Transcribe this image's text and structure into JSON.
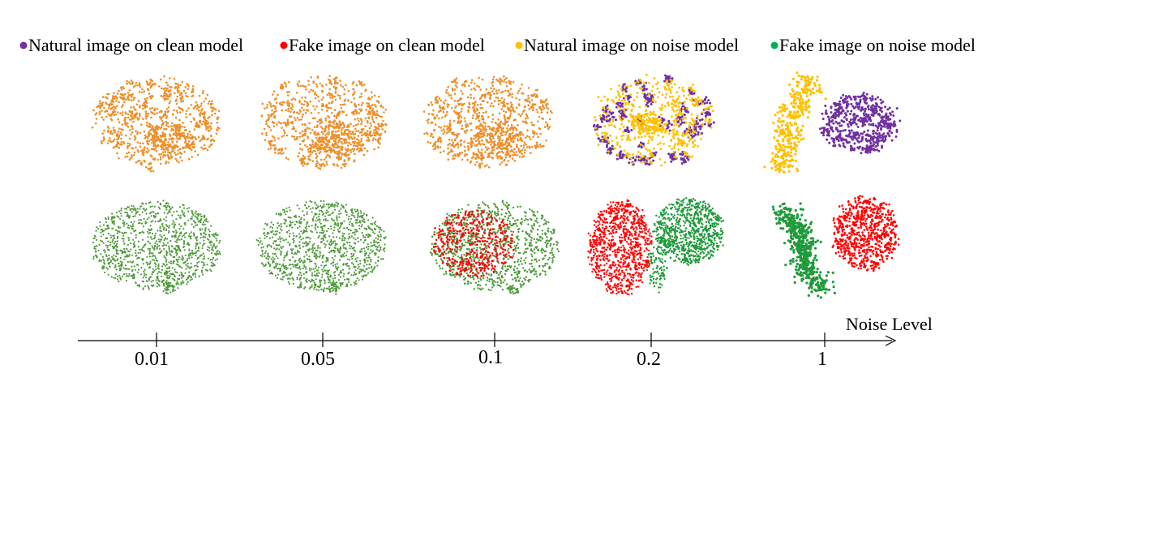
{
  "chart_data": {
    "type": "scatter",
    "title": "",
    "xlabel": "Noise Level",
    "ylabel": "",
    "x_ticks": [
      "0.01",
      "0.05",
      "0.1",
      "0.2",
      "1"
    ],
    "legend_placement": "top",
    "series": [
      {
        "name": "Natural image on clean model",
        "color": "#7030a0"
      },
      {
        "name": "Fake image on clean model",
        "color": "#ff0000"
      },
      {
        "name": "Natural image on noise model",
        "color": "#ffc000"
      },
      {
        "name": "Fake image on noise model",
        "color": "#00b050"
      }
    ],
    "rows": [
      "natural",
      "fake"
    ],
    "panel_colors": {
      "natural": [
        "#ed8f2a",
        "#ed8f2a",
        "#ed8f2a",
        "#7030a0,#ffc000",
        "#ffc000,#7030a0"
      ],
      "fake": [
        "#4e9a3a",
        "#4e9a3a",
        "#4e9a3a,#ff0000",
        "#ff0000,#1f9a3a",
        "#1f9a3a,#ff0000"
      ]
    }
  }
}
